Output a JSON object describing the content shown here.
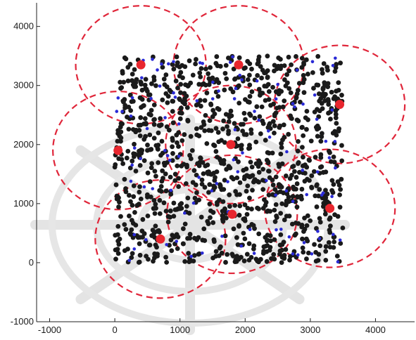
{
  "chart_data": {
    "type": "scatter",
    "title": "",
    "xlabel": "",
    "ylabel": "",
    "xlim": [
      -1200,
      4600
    ],
    "ylim": [
      -1000,
      4400
    ],
    "x_ticks": [
      -1000,
      0,
      1000,
      2000,
      3000,
      4000
    ],
    "y_ticks": [
      -1000,
      0,
      1000,
      2000,
      3000,
      4000
    ],
    "x_tick_labels": [
      "-1000",
      "0",
      "1000",
      "2000",
      "3000",
      "4000"
    ],
    "y_tick_labels": [
      "-1000",
      "0",
      "1000",
      "2000",
      "3000",
      "4000"
    ],
    "grid": false,
    "legend": "none",
    "series": [
      {
        "role": "sensor-nodes",
        "color": "#1a1a1a",
        "marker": "filled-circle",
        "distribution": "uniform",
        "count": 1100,
        "region": {
          "x": [
            0,
            3500
          ],
          "y": [
            0,
            3500
          ]
        }
      },
      {
        "role": "highlighted-nodes",
        "color": "#2a2ad6",
        "marker": "filled-circle-small",
        "distribution": "uniform",
        "count": 110,
        "region": {
          "x": [
            0,
            3500
          ],
          "y": [
            0,
            3500
          ]
        }
      },
      {
        "role": "cluster-heads",
        "color": "#e8262e",
        "marker": "filled-circle-large",
        "x": [
          400,
          1900,
          3450,
          50,
          1780,
          700,
          1800,
          3300
        ],
        "y": [
          3350,
          3350,
          2680,
          1900,
          2000,
          400,
          820,
          920
        ]
      },
      {
        "role": "coverage-circles",
        "color": "#e0263a",
        "line": "dashed",
        "radius": 1000,
        "centers_x": [
          400,
          1900,
          3450,
          50,
          1780,
          700,
          1800,
          3300
        ],
        "centers_y": [
          3350,
          3350,
          2680,
          1900,
          2000,
          400,
          820,
          920
        ]
      }
    ]
  }
}
